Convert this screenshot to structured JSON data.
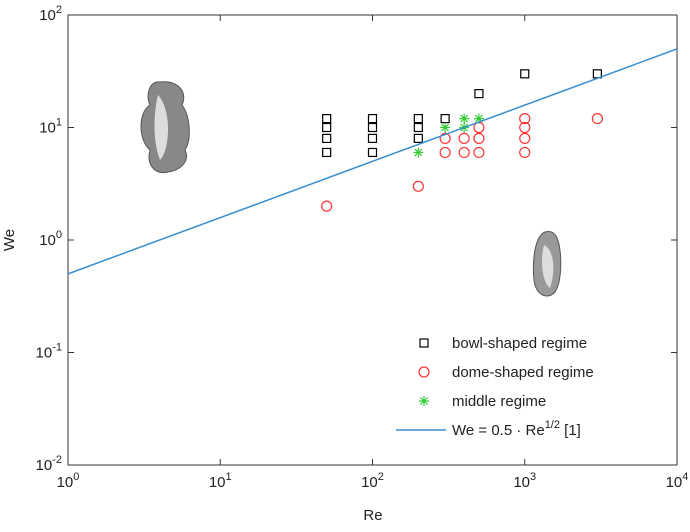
{
  "chart_data": {
    "type": "scatter",
    "x_label": "Re",
    "y_label": "We",
    "xscale": "log",
    "yscale": "log",
    "xlim": [
      1,
      10000
    ],
    "ylim": [
      0.01,
      100
    ],
    "xticks": [
      {
        "value": 1,
        "label": "10^{0}"
      },
      {
        "value": 10,
        "label": "10^{1}"
      },
      {
        "value": 100,
        "label": "10^{2}"
      },
      {
        "value": 1000,
        "label": "10^{3}"
      },
      {
        "value": 10000,
        "label": "10^{4}"
      }
    ],
    "yticks": [
      {
        "value": 0.01,
        "label": "10^{-2}"
      },
      {
        "value": 0.1,
        "label": "10^{-1}"
      },
      {
        "value": 1,
        "label": "10^{0}"
      },
      {
        "value": 10,
        "label": "10^{1}"
      },
      {
        "value": 100,
        "label": "10^{2}"
      }
    ],
    "legend": "lower right",
    "series": [
      {
        "name": "bowl-shaped regime",
        "marker": "square",
        "color": "#000000",
        "x": [
          50,
          50,
          50,
          50,
          100,
          100,
          100,
          100,
          200,
          200,
          200,
          300,
          500,
          1000,
          3000
        ],
        "values": [
          6,
          8,
          10,
          12,
          6,
          8,
          10,
          12,
          8,
          10,
          12,
          12,
          20,
          30,
          30
        ]
      },
      {
        "name": "dome-shaped regime",
        "marker": "circle",
        "color": "#ff3333",
        "x": [
          50,
          200,
          300,
          300,
          400,
          400,
          500,
          500,
          500,
          1000,
          1000,
          1000,
          1000,
          3000
        ],
        "values": [
          2,
          3,
          6,
          8,
          6,
          8,
          6,
          8,
          10,
          6,
          8,
          10,
          12,
          12
        ]
      },
      {
        "name": "middle regime",
        "marker": "star",
        "color": "#33cc33",
        "x": [
          200,
          300,
          400,
          400,
          500
        ],
        "values": [
          6,
          10,
          10,
          12,
          12
        ]
      },
      {
        "name": "We = 0.5 · Re^{1/2}  [1]",
        "marker": "line",
        "color": "#3a8fd0",
        "x": [
          1,
          10000
        ],
        "values": [
          0.5,
          50
        ]
      }
    ]
  }
}
